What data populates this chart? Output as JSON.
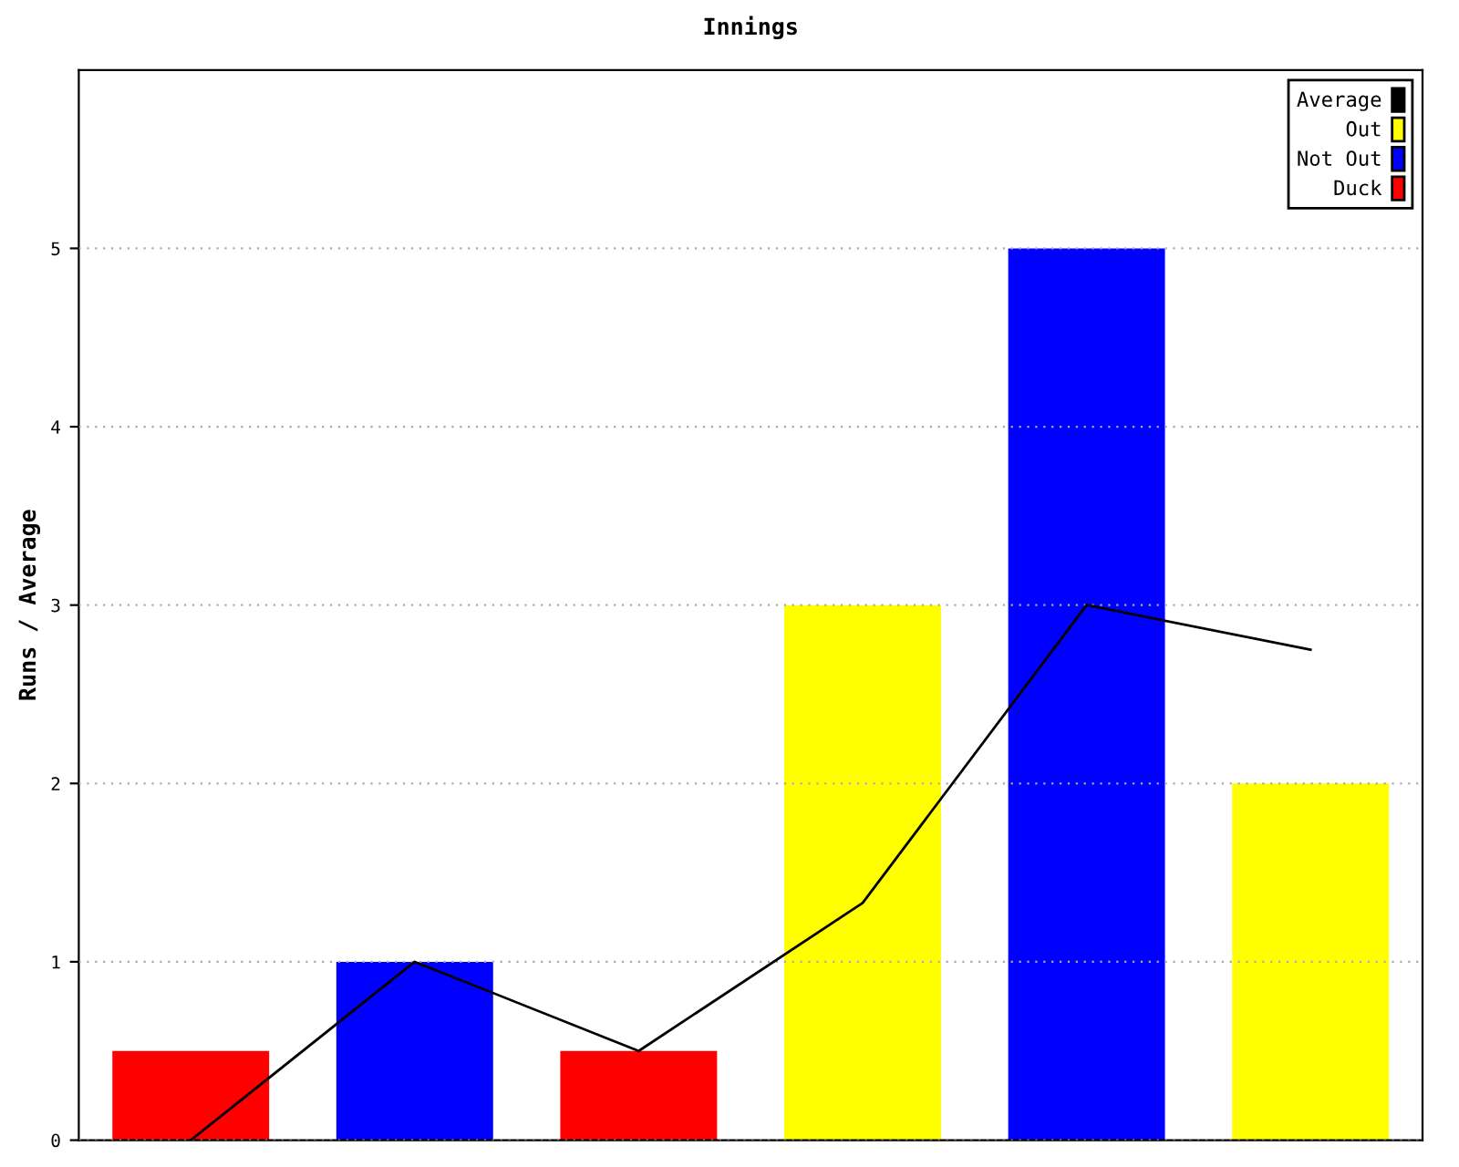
{
  "chart_data": {
    "type": "bar",
    "title": "Innings",
    "ylabel": "Runs / Average",
    "categories": [
      null,
      null,
      null,
      null,
      null,
      null
    ],
    "series": [
      {
        "name": "Average",
        "type": "line",
        "color": "#000000",
        "values": [
          0,
          1,
          0.5,
          1.33,
          3,
          2.75
        ]
      },
      {
        "name": "Out",
        "color": "#ffff00",
        "values": [
          null,
          null,
          null,
          3,
          null,
          2
        ]
      },
      {
        "name": "Not Out",
        "color": "#0000ff",
        "values": [
          null,
          1,
          null,
          null,
          5,
          null
        ]
      },
      {
        "name": "Duck",
        "color": "#ff0000",
        "values": [
          0.5,
          null,
          0.5,
          null,
          null,
          null
        ]
      }
    ],
    "ylim": [
      0,
      6
    ],
    "yticks": [
      0,
      1,
      2,
      3,
      4,
      5
    ],
    "grid": "y",
    "legend": "top right",
    "marker": "none"
  }
}
